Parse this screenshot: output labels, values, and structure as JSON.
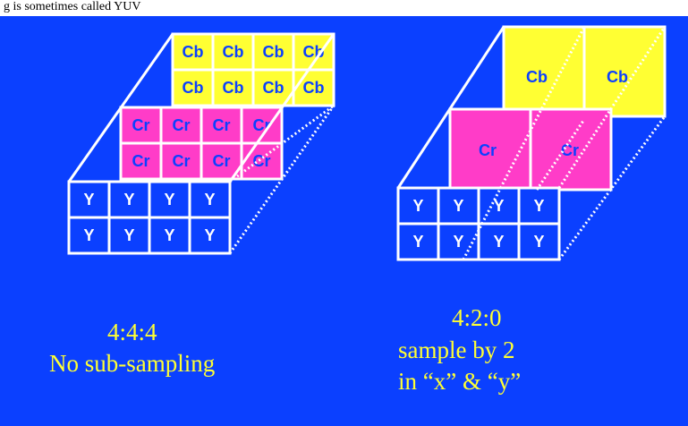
{
  "caption": "g is sometimes called YUV",
  "colors": {
    "background": "#0b40ff",
    "yellow": "#ffff33",
    "magenta": "#ff3cc8",
    "luma_text": "#0b40ff",
    "line": "#ffffff",
    "annotation_text": "#ffff33"
  },
  "left": {
    "mode": "4:4:4",
    "description": "No sub-sampling",
    "y_label": "Y",
    "cb_label": "Cb",
    "cr_label": "Cr"
  },
  "right": {
    "mode": "4:2:0",
    "line1": "sample by 2",
    "line2": "in “x” & “y”",
    "y_label": "Y",
    "cb_label": "Cb",
    "cr_label": "Cr"
  }
}
